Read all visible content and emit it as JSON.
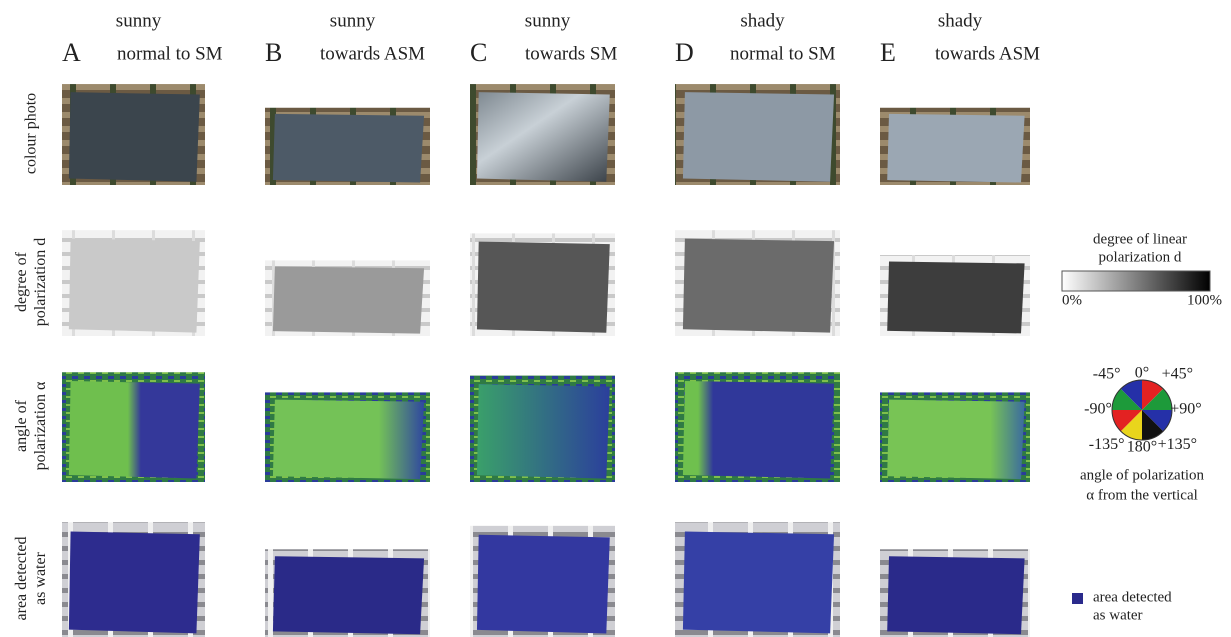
{
  "columns": [
    {
      "condition": "sunny",
      "letter": "A",
      "direction": "normal to SM"
    },
    {
      "condition": "sunny",
      "letter": "B",
      "direction": "towards ASM"
    },
    {
      "condition": "sunny",
      "letter": "C",
      "direction": "towards SM"
    },
    {
      "condition": "shady",
      "letter": "D",
      "direction": "normal to SM"
    },
    {
      "condition": "shady",
      "letter": "E",
      "direction": "towards ASM"
    }
  ],
  "rows": [
    {
      "label": [
        "colour photo"
      ]
    },
    {
      "label": [
        "degree of",
        "polarization d"
      ]
    },
    {
      "label": [
        "angle of",
        "polarization α"
      ]
    },
    {
      "label": [
        "area detected",
        "as water"
      ]
    }
  ],
  "legends": {
    "dop": {
      "title": [
        "degree of linear",
        "polarization d"
      ],
      "min": "0%",
      "max": "100%"
    },
    "aop": {
      "angles": [
        "0°",
        "+45°",
        "+90°",
        "+135°",
        "180°",
        "-135°",
        "-90°",
        "-45°"
      ],
      "caption": [
        "angle of polarization",
        "α from the vertical"
      ]
    },
    "water": {
      "label": [
        "area detected",
        "as water"
      ]
    }
  }
}
